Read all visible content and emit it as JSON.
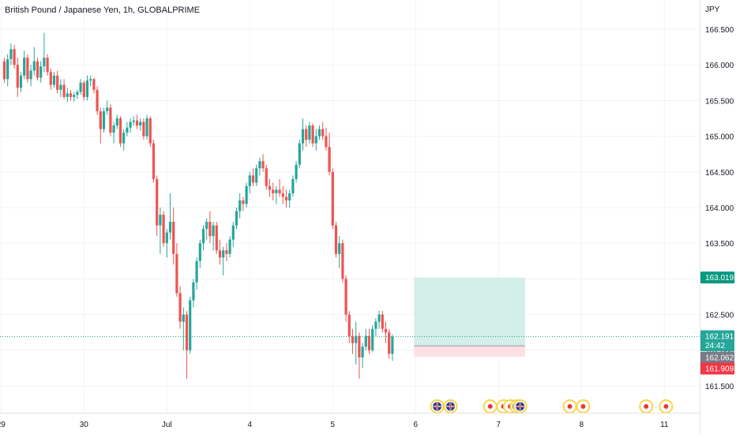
{
  "header": {
    "title": "British Pound / Japanese Yen, 1h, GLOBALPRIME",
    "currency": "JPY"
  },
  "colors": {
    "up": "#26a69a",
    "down": "#ef5350",
    "grid": "#f0f3fa",
    "axis_text": "#131722",
    "target_zone": "#d4efea",
    "stop_zone": "#fde0e3",
    "target_tag": "#089981",
    "stop_tag": "#f23645",
    "entry_tag": "#787b86",
    "last_tag": "#26a69a",
    "event_ring": "#f7d64a",
    "event_dot": "#e53935"
  },
  "chart_data": {
    "type": "candlestick",
    "title": "British Pound / Japanese Yen, 1h, GLOBALPRIME",
    "symbol": "GBP/JPY",
    "interval": "1h",
    "source": "GLOBALPRIME",
    "ylabel": "JPY",
    "ylim": [
      161.15,
      166.85
    ],
    "grid": true,
    "y_ticks": [
      "166.500",
      "166.000",
      "165.500",
      "165.000",
      "164.500",
      "164.000",
      "163.500",
      "163.000",
      "162.500",
      "162.000",
      "161.500"
    ],
    "x_ticks": [
      {
        "label": "29",
        "bar": -1
      },
      {
        "label": "30",
        "bar": 24
      },
      {
        "label": "Jul",
        "bar": 49
      },
      {
        "label": "4",
        "bar": 74
      },
      {
        "label": "5",
        "bar": 99
      },
      {
        "label": "6",
        "bar": 124
      },
      {
        "label": "7",
        "bar": 149
      },
      {
        "label": "8",
        "bar": 174
      },
      {
        "label": "11",
        "bar": 199
      }
    ],
    "candles": [
      [
        166.05,
        166.1,
        165.75,
        165.8
      ],
      [
        165.8,
        166.15,
        165.7,
        166.08
      ],
      [
        166.08,
        166.3,
        166.0,
        166.22
      ],
      [
        166.22,
        166.28,
        165.95,
        166.0
      ],
      [
        166.0,
        166.1,
        165.55,
        165.68
      ],
      [
        165.68,
        165.9,
        165.62,
        165.85
      ],
      [
        165.85,
        166.2,
        165.8,
        166.1
      ],
      [
        166.1,
        166.15,
        165.75,
        165.8
      ],
      [
        165.8,
        166.0,
        165.7,
        165.92
      ],
      [
        165.92,
        166.25,
        165.85,
        166.05
      ],
      [
        166.05,
        166.1,
        165.78,
        165.82
      ],
      [
        165.82,
        166.05,
        165.75,
        165.98
      ],
      [
        165.98,
        166.45,
        165.9,
        166.1
      ],
      [
        166.1,
        166.15,
        165.85,
        165.9
      ],
      [
        165.9,
        165.95,
        165.65,
        165.72
      ],
      [
        165.72,
        165.9,
        165.68,
        165.85
      ],
      [
        165.85,
        165.92,
        165.6,
        165.65
      ],
      [
        165.65,
        165.8,
        165.55,
        165.72
      ],
      [
        165.72,
        165.8,
        165.52,
        165.55
      ],
      [
        165.55,
        165.68,
        165.48,
        165.6
      ],
      [
        165.6,
        165.65,
        165.5,
        165.55
      ],
      [
        165.55,
        165.62,
        165.48,
        165.58
      ],
      [
        165.58,
        165.65,
        165.52,
        165.62
      ],
      [
        165.62,
        165.8,
        165.58,
        165.75
      ],
      [
        165.75,
        165.78,
        165.5,
        165.55
      ],
      [
        165.55,
        165.85,
        165.5,
        165.78
      ],
      [
        165.78,
        165.85,
        165.7,
        165.8
      ],
      [
        165.8,
        165.82,
        165.6,
        165.65
      ],
      [
        165.65,
        165.7,
        165.3,
        165.35
      ],
      [
        165.35,
        165.4,
        164.9,
        165.1
      ],
      [
        165.1,
        165.4,
        165.05,
        165.35
      ],
      [
        165.35,
        165.5,
        165.3,
        165.4
      ],
      [
        165.4,
        165.45,
        165.0,
        165.05
      ],
      [
        165.05,
        165.2,
        164.9,
        165.15
      ],
      [
        165.15,
        165.3,
        165.1,
        165.25
      ],
      [
        165.25,
        165.28,
        164.85,
        164.9
      ],
      [
        164.9,
        165.1,
        164.8,
        165.05
      ],
      [
        165.05,
        165.2,
        165.0,
        165.12
      ],
      [
        165.12,
        165.25,
        165.05,
        165.2
      ],
      [
        165.2,
        165.28,
        165.15,
        165.22
      ],
      [
        165.22,
        165.3,
        165.1,
        165.15
      ],
      [
        165.15,
        165.25,
        165.08,
        165.2
      ],
      [
        165.2,
        165.25,
        164.95,
        165.0
      ],
      [
        165.0,
        165.3,
        164.95,
        165.25
      ],
      [
        165.25,
        165.28,
        164.85,
        164.9
      ],
      [
        164.9,
        164.95,
        164.35,
        164.4
      ],
      [
        164.4,
        164.45,
        163.6,
        163.75
      ],
      [
        163.75,
        164.0,
        163.35,
        163.9
      ],
      [
        163.9,
        163.95,
        163.45,
        163.5
      ],
      [
        163.5,
        163.7,
        163.3,
        163.65
      ],
      [
        163.65,
        164.2,
        163.55,
        163.8
      ],
      [
        163.8,
        164.0,
        163.2,
        163.35
      ],
      [
        163.35,
        163.5,
        162.75,
        162.8
      ],
      [
        162.8,
        162.9,
        162.3,
        162.4
      ],
      [
        162.4,
        162.6,
        162.0,
        162.5
      ],
      [
        162.5,
        162.55,
        161.6,
        162.0
      ],
      [
        162.0,
        162.75,
        161.95,
        162.7
      ],
      [
        162.7,
        163.0,
        162.6,
        162.95
      ],
      [
        162.95,
        163.3,
        162.85,
        163.25
      ],
      [
        163.25,
        163.55,
        163.15,
        163.5
      ],
      [
        163.5,
        163.75,
        163.4,
        163.7
      ],
      [
        163.7,
        163.85,
        163.55,
        163.8
      ],
      [
        163.8,
        163.95,
        163.5,
        163.6
      ],
      [
        163.6,
        163.8,
        163.4,
        163.75
      ],
      [
        163.75,
        163.8,
        163.35,
        163.4
      ],
      [
        163.4,
        163.55,
        163.2,
        163.3
      ],
      [
        163.3,
        163.45,
        163.05,
        163.4
      ],
      [
        163.4,
        163.5,
        163.25,
        163.35
      ],
      [
        163.35,
        163.6,
        163.3,
        163.55
      ],
      [
        163.55,
        163.8,
        163.45,
        163.75
      ],
      [
        163.75,
        164.0,
        163.7,
        163.95
      ],
      [
        163.95,
        164.2,
        163.85,
        164.1
      ],
      [
        164.1,
        164.15,
        163.95,
        164.05
      ],
      [
        164.05,
        164.35,
        164.0,
        164.3
      ],
      [
        164.3,
        164.5,
        164.2,
        164.45
      ],
      [
        164.45,
        164.55,
        164.3,
        164.35
      ],
      [
        164.35,
        164.6,
        164.3,
        164.55
      ],
      [
        164.55,
        164.7,
        164.45,
        164.65
      ],
      [
        164.65,
        164.75,
        164.5,
        164.55
      ],
      [
        164.55,
        164.6,
        164.25,
        164.3
      ],
      [
        164.3,
        164.4,
        164.15,
        164.25
      ],
      [
        164.25,
        164.35,
        164.1,
        164.2
      ],
      [
        164.2,
        164.3,
        164.05,
        164.25
      ],
      [
        164.25,
        164.4,
        164.15,
        164.2
      ],
      [
        164.2,
        164.3,
        164.05,
        164.15
      ],
      [
        164.15,
        164.25,
        164.0,
        164.1
      ],
      [
        164.1,
        164.25,
        164.0,
        164.2
      ],
      [
        164.2,
        164.45,
        164.15,
        164.4
      ],
      [
        164.4,
        164.65,
        164.35,
        164.6
      ],
      [
        164.6,
        164.95,
        164.55,
        164.9
      ],
      [
        164.9,
        165.25,
        164.8,
        165.1
      ],
      [
        165.1,
        165.15,
        164.85,
        164.95
      ],
      [
        164.95,
        165.2,
        164.9,
        165.15
      ],
      [
        165.15,
        165.18,
        164.85,
        164.9
      ],
      [
        164.9,
        165.1,
        164.8,
        165.0
      ],
      [
        165.0,
        165.15,
        164.95,
        165.1
      ],
      [
        165.1,
        165.2,
        164.95,
        165.0
      ],
      [
        165.0,
        165.12,
        164.8,
        164.85
      ],
      [
        164.85,
        165.05,
        164.45,
        164.5
      ],
      [
        164.5,
        164.55,
        163.7,
        163.75
      ],
      [
        163.75,
        163.8,
        163.3,
        163.35
      ],
      [
        163.35,
        163.6,
        163.15,
        163.5
      ],
      [
        163.5,
        163.55,
        162.95,
        163.0
      ],
      [
        163.0,
        163.05,
        162.4,
        162.5
      ],
      [
        162.5,
        162.55,
        162.1,
        162.2
      ],
      [
        162.2,
        162.3,
        161.95,
        162.1
      ],
      [
        162.1,
        162.4,
        161.8,
        162.2
      ],
      [
        162.2,
        162.25,
        161.6,
        161.9
      ],
      [
        161.9,
        162.1,
        161.75,
        162.05
      ],
      [
        162.05,
        162.3,
        162.0,
        162.2
      ],
      [
        162.2,
        162.3,
        161.95,
        162.0
      ],
      [
        162.0,
        162.35,
        161.98,
        162.3
      ],
      [
        162.3,
        162.45,
        162.2,
        162.4
      ],
      [
        162.4,
        162.55,
        162.3,
        162.5
      ],
      [
        162.5,
        162.55,
        162.25,
        162.3
      ],
      [
        162.3,
        162.4,
        162.1,
        162.25
      ],
      [
        162.25,
        162.3,
        161.88,
        161.95
      ],
      [
        161.95,
        162.22,
        161.85,
        162.19
      ]
    ],
    "position": {
      "type": "long",
      "target": 163.019,
      "entry": 162.062,
      "stop": 161.909,
      "start_bar": 123.5,
      "end_bar": 157
    },
    "last_price": 162.191,
    "countdown": "24:42",
    "price_tags": {
      "target": "163.019",
      "last": "162.191",
      "countdown": "24:42",
      "entry": "162.062",
      "stop": "161.909"
    },
    "events": [
      {
        "bar": 130.5,
        "kind": "flag"
      },
      {
        "bar": 134.5,
        "kind": "flag"
      },
      {
        "bar": 146.5,
        "kind": "dot"
      },
      {
        "bar": 150.5,
        "kind": "dot"
      },
      {
        "bar": 152.5,
        "kind": "dot"
      },
      {
        "bar": 154.5,
        "kind": "flag"
      },
      {
        "bar": 155.5,
        "kind": "flag"
      },
      {
        "bar": 170.5,
        "kind": "dot"
      },
      {
        "bar": 174.5,
        "kind": "dot"
      },
      {
        "bar": 193.5,
        "kind": "dot"
      },
      {
        "bar": 199.5,
        "kind": "dot"
      }
    ]
  }
}
